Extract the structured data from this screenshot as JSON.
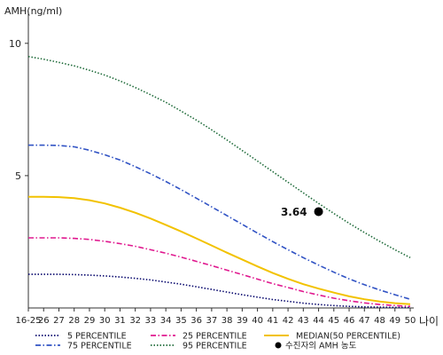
{
  "chart_data": {
    "type": "line",
    "ylabel": "AMH(ng/ml)",
    "xlabel": "나이",
    "categories": [
      "16-25",
      "26",
      "27",
      "28",
      "29",
      "30",
      "31",
      "32",
      "33",
      "34",
      "35",
      "36",
      "37",
      "38",
      "39",
      "40",
      "41",
      "42",
      "43",
      "44",
      "45",
      "46",
      "47",
      "48",
      "49",
      "50"
    ],
    "yticks": [
      5,
      10
    ],
    "ylim": [
      0,
      11
    ],
    "grid": false,
    "legend_placement": "bottom",
    "series": [
      {
        "name": "5 PERCENTILE",
        "color": "#0a0a6e",
        "dash": "dotted",
        "values": [
          1.27,
          1.27,
          1.27,
          1.26,
          1.24,
          1.21,
          1.17,
          1.12,
          1.06,
          0.98,
          0.9,
          0.8,
          0.7,
          0.6,
          0.5,
          0.41,
          0.32,
          0.25,
          0.18,
          0.13,
          0.09,
          0.06,
          0.04,
          0.03,
          0.02,
          0.02
        ]
      },
      {
        "name": "25 PERCENTILE",
        "color": "#e0198f",
        "dash": "dashdot",
        "values": [
          2.65,
          2.65,
          2.65,
          2.63,
          2.59,
          2.52,
          2.43,
          2.33,
          2.2,
          2.07,
          1.92,
          1.76,
          1.6,
          1.43,
          1.26,
          1.09,
          0.92,
          0.77,
          0.62,
          0.49,
          0.37,
          0.27,
          0.19,
          0.13,
          0.09,
          0.06
        ]
      },
      {
        "name": "MEDIAN(50 PERCENTILE)",
        "color": "#f2c200",
        "dash": "solid",
        "values": [
          4.2,
          4.2,
          4.19,
          4.15,
          4.07,
          3.95,
          3.79,
          3.6,
          3.38,
          3.14,
          2.89,
          2.63,
          2.36,
          2.09,
          1.83,
          1.57,
          1.32,
          1.1,
          0.9,
          0.73,
          0.58,
          0.44,
          0.33,
          0.24,
          0.18,
          0.14
        ]
      },
      {
        "name": "75 PERCENTILE",
        "color": "#3153c4",
        "dash": "dashdot",
        "values": [
          6.15,
          6.15,
          6.14,
          6.09,
          5.96,
          5.79,
          5.59,
          5.34,
          5.07,
          4.78,
          4.47,
          4.15,
          3.82,
          3.49,
          3.16,
          2.83,
          2.51,
          2.2,
          1.9,
          1.62,
          1.35,
          1.1,
          0.88,
          0.68,
          0.5,
          0.33
        ]
      },
      {
        "name": "95 PERCENTILE",
        "color": "#1f6b3a",
        "dash": "dotted",
        "values": [
          9.5,
          9.4,
          9.28,
          9.15,
          8.98,
          8.8,
          8.58,
          8.33,
          8.06,
          7.77,
          7.44,
          7.1,
          6.73,
          6.35,
          5.95,
          5.55,
          5.15,
          4.75,
          4.35,
          3.95,
          3.57,
          3.2,
          2.85,
          2.52,
          2.2,
          1.9
        ]
      }
    ],
    "marker": {
      "label": "수진자의 AMH 농도",
      "x": "44",
      "value": 3.64,
      "value_label": "3.64"
    }
  }
}
